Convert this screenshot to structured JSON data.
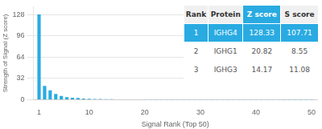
{
  "chart_data": {
    "type": "bar",
    "x": [
      1,
      2,
      3,
      4,
      5,
      6,
      7,
      8,
      9,
      10,
      11,
      12,
      13,
      14,
      15,
      16,
      17,
      18,
      19,
      20,
      21,
      22,
      23,
      24,
      25,
      26,
      27,
      28,
      29,
      30,
      31,
      32,
      33,
      34,
      35,
      36,
      37,
      38,
      39,
      40,
      41,
      42,
      43,
      44,
      45,
      46,
      47,
      48,
      49,
      50
    ],
    "values": [
      128.33,
      20.82,
      14.17,
      8.5,
      5.5,
      3.8,
      3.0,
      2.5,
      1.8,
      1.5,
      1.2,
      1.0,
      0.85,
      0.7,
      0.6,
      0.5,
      0.45,
      0.4,
      0.35,
      0.3,
      0.28,
      0.25,
      0.22,
      0.2,
      0.18,
      0.16,
      0.15,
      0.13,
      0.12,
      0.11,
      0.1,
      0.09,
      0.08,
      0.08,
      0.07,
      0.07,
      0.06,
      0.06,
      0.05,
      0.05,
      0.05,
      0.04,
      0.04,
      0.04,
      0.03,
      0.03,
      0.03,
      0.03,
      0.02,
      0.02
    ],
    "color": "#29abe2",
    "xlabel": "Signal Rank (Top 50)",
    "ylabel": "Strength of Signal (Z score)",
    "xlim": [
      0,
      51
    ],
    "xticks": [
      1,
      10,
      20,
      30,
      40,
      50
    ],
    "ylim": [
      0,
      140
    ],
    "yticks": [
      0,
      32,
      64,
      96,
      128
    ],
    "grid": "y",
    "table": {
      "columns": [
        "Rank",
        "Protein",
        "Z score",
        "S score"
      ],
      "rows": [
        [
          "1",
          "IGHG4",
          "128.33",
          "107.71"
        ],
        [
          "2",
          "IGHG1",
          "20.82",
          "8.55"
        ],
        [
          "3",
          "IGHG3",
          "14.17",
          "11.08"
        ]
      ]
    }
  }
}
